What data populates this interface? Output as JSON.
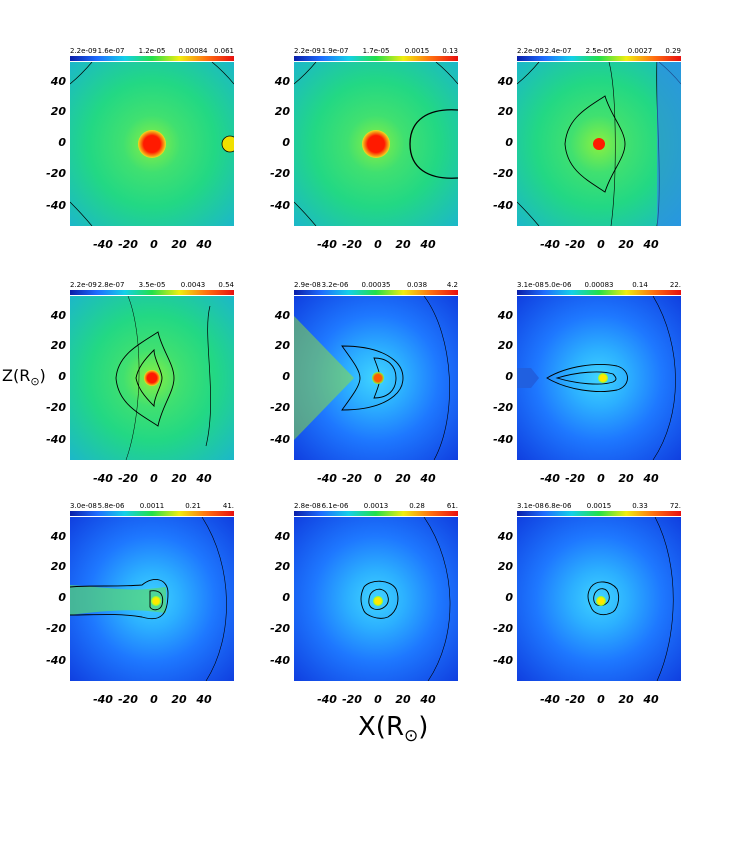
{
  "figure": {
    "y_axis_title": "Z(R",
    "y_axis_sub": "⊙",
    "x_axis_title": "X(R",
    "x_axis_sub": "⊙"
  },
  "colorbars": [
    [
      "2.2e-09",
      "1.6e-07",
      "1.2e-05",
      "0.00084",
      "0.061"
    ],
    [
      "2.2e-09",
      "1.9e-07",
      "1.7e-05",
      "0.0015",
      "0.13"
    ],
    [
      "2.2e-09",
      "2.4e-07",
      "2.5e-05",
      "0.0027",
      "0.29"
    ],
    [
      "2.2e-09",
      "2.8e-07",
      "3.5e-05",
      "0.0043",
      "0.54"
    ],
    [
      "2.9e-08",
      "3.2e-06",
      "0.00035",
      "0.038",
      "4.2"
    ],
    [
      "3.1e-08",
      "5.0e-06",
      "0.00083",
      "0.14",
      "22."
    ],
    [
      "3.0e-08",
      "5.8e-06",
      "0.0011",
      "0.21",
      "41."
    ],
    [
      "2.8e-08",
      "6.1e-06",
      "0.0013",
      "0.28",
      "61."
    ],
    [
      "3.1e-08",
      "6.8e-06",
      "0.0015",
      "0.33",
      "72."
    ]
  ],
  "y_ticks": [
    "40",
    "20",
    "0",
    "-20",
    "-40"
  ],
  "x_ticks": [
    "-40",
    "-20",
    "0",
    "20",
    "40"
  ],
  "panels": [
    {
      "bg": "green",
      "core": "#ff1a00"
    },
    {
      "bg": "green",
      "core": "#ff1a00"
    },
    {
      "bg": "green",
      "core": "#ff1a00"
    },
    {
      "bg": "green",
      "core": "#ff1a00"
    },
    {
      "bg": "blue",
      "core": "#ff5a00"
    },
    {
      "bg": "blue",
      "core": "#ffe800"
    },
    {
      "bg": "blue",
      "core": "#ffe800"
    },
    {
      "bg": "blue",
      "core": "#ffe800"
    },
    {
      "bg": "blue",
      "core": "#ffe800"
    }
  ]
}
